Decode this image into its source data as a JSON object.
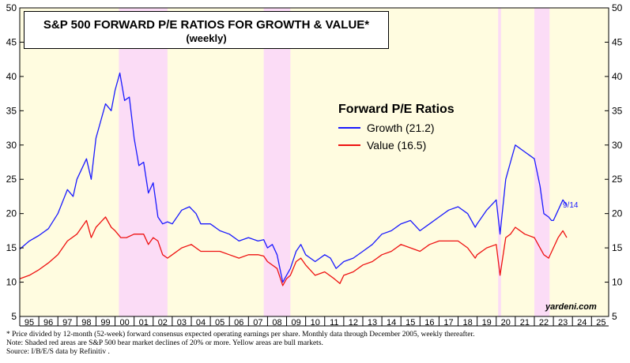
{
  "title": {
    "line1": "S&P 500 FORWARD P/E RATIOS FOR GROWTH & VALUE*",
    "line2": "(weekly)"
  },
  "legend": {
    "title": "Forward P/E Ratios",
    "growth_label": "Growth (21.2)",
    "value_label": "Value (16.5)"
  },
  "end_label": "9/14",
  "watermark": "yardeni.com",
  "notes": {
    "line1": "*  Price divided by 12-month (52-week) forward consensus expected operating earnings per share. Monthly data through December 2005, weekly thereafter.",
    "line2": "Note: Shaded red areas are S&P 500 bear market declines of 20% or more. Yellow areas are bull markets.",
    "line3": "Source: I/B/E/S data by Refinitiv ."
  },
  "colors": {
    "growth": "#1a1aff",
    "value": "#ee1111",
    "bull": "#fffce0",
    "bear": "#fbdcf6"
  },
  "chart_data": {
    "type": "line",
    "title": "S&P 500 FORWARD P/E RATIOS FOR GROWTH & VALUE* (weekly)",
    "xlabel": "",
    "ylabel": "",
    "xlim": [
      1995,
      2025.9
    ],
    "ylim": [
      5,
      50
    ],
    "yticks": [
      5,
      10,
      15,
      20,
      25,
      30,
      35,
      40,
      45,
      50
    ],
    "xticks": [
      "95",
      "96",
      "97",
      "98",
      "99",
      "00",
      "01",
      "02",
      "03",
      "04",
      "05",
      "06",
      "07",
      "08",
      "09",
      "10",
      "11",
      "12",
      "13",
      "14",
      "15",
      "16",
      "17",
      "18",
      "19",
      "20",
      "21",
      "22",
      "23",
      "24",
      "25"
    ],
    "y_axis_both_sides": true,
    "grid": false,
    "bear_markets": [
      [
        2000.2,
        2002.75
      ],
      [
        2007.8,
        2009.2
      ],
      [
        2020.1,
        2020.25
      ],
      [
        2022.0,
        2022.8
      ]
    ],
    "series": [
      {
        "name": "Growth (21.2)",
        "color": "#1a1aff",
        "points": [
          [
            1995.0,
            14.8
          ],
          [
            1995.5,
            16.0
          ],
          [
            1996.0,
            16.8
          ],
          [
            1996.5,
            17.8
          ],
          [
            1997.0,
            20.0
          ],
          [
            1997.5,
            23.5
          ],
          [
            1997.8,
            22.5
          ],
          [
            1998.0,
            25.0
          ],
          [
            1998.5,
            28.0
          ],
          [
            1998.75,
            25.0
          ],
          [
            1999.0,
            31.0
          ],
          [
            1999.5,
            36.0
          ],
          [
            1999.8,
            35.0
          ],
          [
            2000.0,
            38.0
          ],
          [
            2000.25,
            40.5
          ],
          [
            2000.5,
            36.5
          ],
          [
            2000.75,
            37.0
          ],
          [
            2001.0,
            31.0
          ],
          [
            2001.25,
            27.0
          ],
          [
            2001.5,
            27.5
          ],
          [
            2001.75,
            23.0
          ],
          [
            2002.0,
            24.5
          ],
          [
            2002.25,
            19.5
          ],
          [
            2002.5,
            18.5
          ],
          [
            2002.75,
            18.8
          ],
          [
            2003.0,
            18.5
          ],
          [
            2003.5,
            20.5
          ],
          [
            2003.9,
            21.0
          ],
          [
            2004.25,
            20.0
          ],
          [
            2004.5,
            18.5
          ],
          [
            2005.0,
            18.5
          ],
          [
            2005.5,
            17.5
          ],
          [
            2006.0,
            17.0
          ],
          [
            2006.5,
            16.0
          ],
          [
            2007.0,
            16.5
          ],
          [
            2007.5,
            16.0
          ],
          [
            2007.8,
            16.2
          ],
          [
            2008.0,
            15.0
          ],
          [
            2008.25,
            15.5
          ],
          [
            2008.5,
            14.0
          ],
          [
            2008.8,
            10.0
          ],
          [
            2009.0,
            11.0
          ],
          [
            2009.2,
            12.0
          ],
          [
            2009.5,
            14.5
          ],
          [
            2009.75,
            15.5
          ],
          [
            2010.0,
            14.0
          ],
          [
            2010.5,
            13.0
          ],
          [
            2011.0,
            14.0
          ],
          [
            2011.3,
            13.5
          ],
          [
            2011.6,
            12.0
          ],
          [
            2012.0,
            13.0
          ],
          [
            2012.5,
            13.5
          ],
          [
            2013.0,
            14.5
          ],
          [
            2013.5,
            15.5
          ],
          [
            2014.0,
            17.0
          ],
          [
            2014.5,
            17.5
          ],
          [
            2015.0,
            18.5
          ],
          [
            2015.5,
            19.0
          ],
          [
            2016.0,
            17.5
          ],
          [
            2016.5,
            18.5
          ],
          [
            2017.0,
            19.5
          ],
          [
            2017.5,
            20.5
          ],
          [
            2018.0,
            21.0
          ],
          [
            2018.5,
            20.0
          ],
          [
            2018.9,
            18.0
          ],
          [
            2019.0,
            18.5
          ],
          [
            2019.5,
            20.5
          ],
          [
            2020.0,
            22.0
          ],
          [
            2020.2,
            17.0
          ],
          [
            2020.5,
            25.0
          ],
          [
            2020.75,
            27.5
          ],
          [
            2021.0,
            30.0
          ],
          [
            2021.5,
            29.0
          ],
          [
            2021.75,
            28.5
          ],
          [
            2022.0,
            28.0
          ],
          [
            2022.3,
            24.0
          ],
          [
            2022.5,
            20.0
          ],
          [
            2022.75,
            19.5
          ],
          [
            2022.9,
            19.0
          ],
          [
            2023.0,
            19.0
          ],
          [
            2023.25,
            20.5
          ],
          [
            2023.5,
            22.0
          ],
          [
            2023.7,
            21.2
          ]
        ]
      },
      {
        "name": "Value (16.5)",
        "color": "#ee1111",
        "points": [
          [
            1995.0,
            10.5
          ],
          [
            1995.5,
            11.0
          ],
          [
            1996.0,
            11.8
          ],
          [
            1996.5,
            12.8
          ],
          [
            1997.0,
            14.0
          ],
          [
            1997.5,
            16.0
          ],
          [
            1998.0,
            17.0
          ],
          [
            1998.5,
            19.0
          ],
          [
            1998.75,
            16.5
          ],
          [
            1999.0,
            18.0
          ],
          [
            1999.5,
            19.5
          ],
          [
            1999.8,
            18.0
          ],
          [
            2000.0,
            17.5
          ],
          [
            2000.3,
            16.5
          ],
          [
            2000.6,
            16.5
          ],
          [
            2001.0,
            17.0
          ],
          [
            2001.5,
            17.0
          ],
          [
            2001.75,
            15.5
          ],
          [
            2002.0,
            16.5
          ],
          [
            2002.25,
            16.0
          ],
          [
            2002.5,
            14.0
          ],
          [
            2002.75,
            13.5
          ],
          [
            2003.0,
            14.0
          ],
          [
            2003.5,
            15.0
          ],
          [
            2004.0,
            15.5
          ],
          [
            2004.5,
            14.5
          ],
          [
            2005.0,
            14.5
          ],
          [
            2005.5,
            14.5
          ],
          [
            2006.0,
            14.0
          ],
          [
            2006.5,
            13.5
          ],
          [
            2007.0,
            14.0
          ],
          [
            2007.5,
            14.0
          ],
          [
            2007.8,
            13.8
          ],
          [
            2008.0,
            13.0
          ],
          [
            2008.5,
            12.0
          ],
          [
            2008.8,
            9.5
          ],
          [
            2009.0,
            10.5
          ],
          [
            2009.2,
            11.0
          ],
          [
            2009.5,
            13.0
          ],
          [
            2009.75,
            13.5
          ],
          [
            2010.0,
            12.5
          ],
          [
            2010.5,
            11.0
          ],
          [
            2011.0,
            11.5
          ],
          [
            2011.5,
            10.5
          ],
          [
            2011.8,
            9.8
          ],
          [
            2012.0,
            11.0
          ],
          [
            2012.5,
            11.5
          ],
          [
            2013.0,
            12.5
          ],
          [
            2013.5,
            13.0
          ],
          [
            2014.0,
            14.0
          ],
          [
            2014.5,
            14.5
          ],
          [
            2015.0,
            15.5
          ],
          [
            2015.5,
            15.0
          ],
          [
            2016.0,
            14.5
          ],
          [
            2016.5,
            15.5
          ],
          [
            2017.0,
            16.0
          ],
          [
            2017.5,
            16.0
          ],
          [
            2018.0,
            16.0
          ],
          [
            2018.5,
            15.0
          ],
          [
            2018.9,
            13.5
          ],
          [
            2019.0,
            14.0
          ],
          [
            2019.5,
            15.0
          ],
          [
            2020.0,
            15.5
          ],
          [
            2020.2,
            11.0
          ],
          [
            2020.5,
            16.5
          ],
          [
            2020.75,
            17.0
          ],
          [
            2021.0,
            18.0
          ],
          [
            2021.5,
            17.0
          ],
          [
            2022.0,
            16.5
          ],
          [
            2022.5,
            14.0
          ],
          [
            2022.75,
            13.5
          ],
          [
            2023.0,
            15.0
          ],
          [
            2023.25,
            16.5
          ],
          [
            2023.5,
            17.5
          ],
          [
            2023.7,
            16.5
          ]
        ]
      }
    ]
  }
}
